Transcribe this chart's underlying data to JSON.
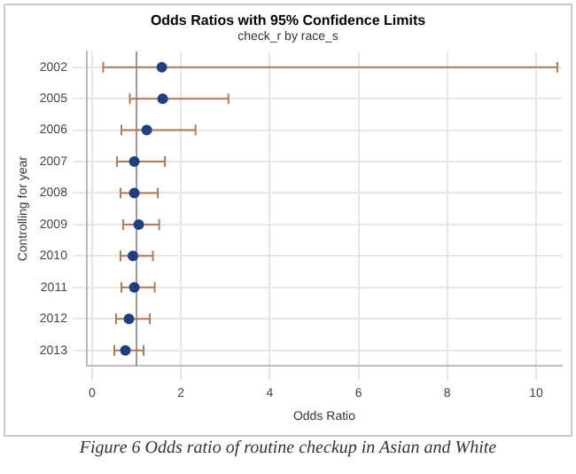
{
  "chart_data": {
    "type": "scatter",
    "orientation": "horizontal",
    "title": "Odds Ratios with 95% Confidence Limits",
    "subtitle": "check_r by race_s",
    "xlabel": "Odds Ratio",
    "ylabel": "Controlling for year",
    "categories": [
      "2002",
      "2005",
      "2006",
      "2007",
      "2008",
      "2009",
      "2010",
      "2011",
      "2012",
      "2013"
    ],
    "series": [
      {
        "color": "#1f3f7f",
        "values": [
          1.57,
          1.59,
          1.23,
          0.95,
          0.95,
          1.05,
          0.92,
          0.95,
          0.83,
          0.75
        ],
        "errors": [
          [
            0.25,
            10.48
          ],
          [
            0.85,
            3.07
          ],
          [
            0.66,
            2.33
          ],
          [
            0.56,
            1.64
          ],
          [
            0.64,
            1.48
          ],
          [
            0.7,
            1.51
          ],
          [
            0.64,
            1.37
          ],
          [
            0.66,
            1.41
          ],
          [
            0.54,
            1.3
          ],
          [
            0.5,
            1.16
          ]
        ]
      }
    ],
    "xlim": [
      -0.12,
      10.58
    ],
    "xticks": [
      0,
      2,
      4,
      6,
      8,
      10
    ],
    "grid": true,
    "marker": "circle",
    "legend": false,
    "ref_lines": [
      {
        "axis": "x",
        "value": 1,
        "color": "#999999"
      }
    ],
    "annotations": [
      "Figure 6 Odds ratio of routine checkup in Asian and White"
    ]
  }
}
